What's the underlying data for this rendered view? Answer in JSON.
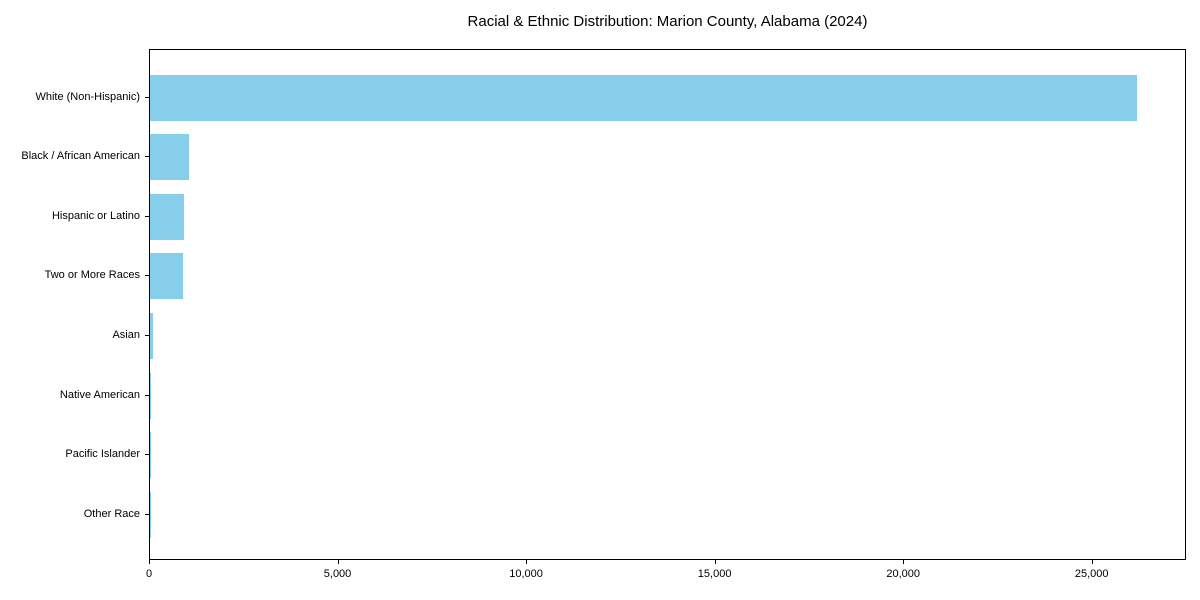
{
  "chart_data": {
    "type": "bar",
    "orientation": "horizontal",
    "title": "Racial & Ethnic Distribution: Marion County, Alabama (2024)",
    "categories": [
      "White (Non-Hispanic)",
      "Black / African American",
      "Hispanic or Latino",
      "Two or More Races",
      "Asian",
      "Native American",
      "Pacific Islander",
      "Other Race"
    ],
    "values": [
      26180,
      1030,
      910,
      885,
      85,
      27,
      5,
      10
    ],
    "xlabel": "",
    "ylabel": "",
    "xlim": [
      0,
      27500
    ],
    "xticks": [
      0,
      5000,
      10000,
      15000,
      20000,
      25000
    ],
    "xtick_labels": [
      "0",
      "5,000",
      "10,000",
      "15,000",
      "20,000",
      "25,000"
    ],
    "bar_color": "#87CEEB",
    "spine_color": "#000000",
    "text_color": "#000000",
    "background_color": "#ffffff",
    "grid": false,
    "legend_position": "none"
  }
}
